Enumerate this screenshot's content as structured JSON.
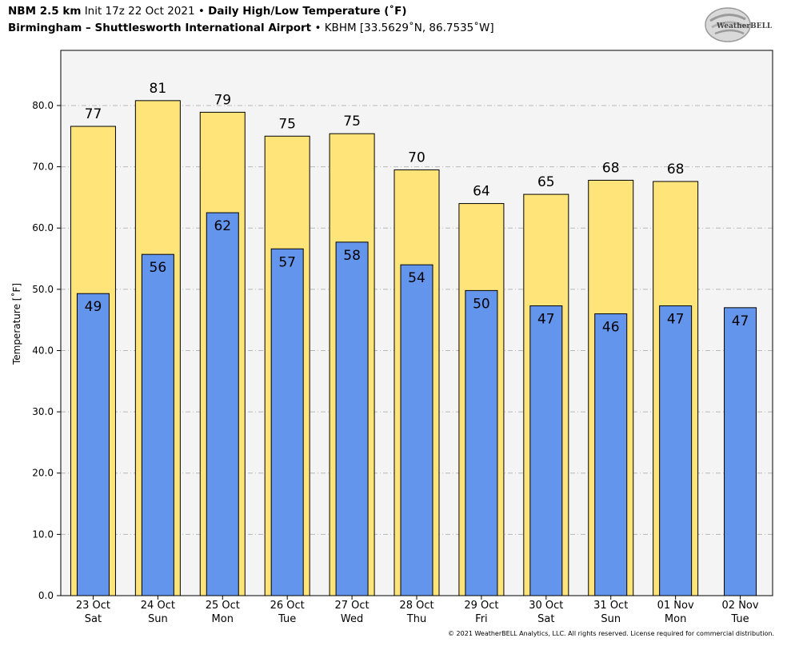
{
  "header": {
    "model": "NBM 2.5 km",
    "init": "Init 17z 22 Oct 2021",
    "sep": "•",
    "product": "Daily High/Low Temperature (˚F)",
    "location": "Birmingham – Shuttlesworth International Airport",
    "station": "KBHM [33.5629˚N, 86.7535˚W]"
  },
  "logo": {
    "brand": "WeatherBELL",
    "icon": "weatherbell-logo"
  },
  "copyright": "© 2021 WeatherBELL Analytics, LLC. All rights reserved. License required for commercial distribution.",
  "colors": {
    "high": "#FFE47A",
    "low": "#6495ED",
    "plot_bg": "#F4F4F4"
  },
  "chart_data": {
    "type": "bar",
    "ylabel": "Temperature [˚F]",
    "ylim": [
      0,
      89
    ],
    "yticks": [
      "0.0",
      "10.0",
      "20.0",
      "30.0",
      "40.0",
      "50.0",
      "60.0",
      "70.0",
      "80.0"
    ],
    "grid": true,
    "categories": [
      [
        "23 Oct",
        "Sat"
      ],
      [
        "24 Oct",
        "Sun"
      ],
      [
        "25 Oct",
        "Mon"
      ],
      [
        "26 Oct",
        "Tue"
      ],
      [
        "27 Oct",
        "Wed"
      ],
      [
        "28 Oct",
        "Thu"
      ],
      [
        "29 Oct",
        "Fri"
      ],
      [
        "30 Oct",
        "Sat"
      ],
      [
        "31 Oct",
        "Sun"
      ],
      [
        "01 Nov",
        "Mon"
      ],
      [
        "02 Nov",
        "Tue"
      ]
    ],
    "series": [
      {
        "values": [
          76.6,
          80.8,
          78.9,
          75.0,
          75.4,
          69.5,
          64.0,
          65.5,
          67.8,
          67.6,
          null
        ],
        "labels": [
          "77",
          "81",
          "79",
          "75",
          "75",
          "70",
          "64",
          "65",
          "68",
          "68",
          ""
        ]
      },
      {
        "values": [
          49.3,
          55.7,
          62.5,
          56.6,
          57.7,
          54.0,
          49.8,
          47.3,
          46.0,
          47.3,
          47.0
        ],
        "labels": [
          "49",
          "56",
          "62",
          "57",
          "58",
          "54",
          "50",
          "47",
          "46",
          "47",
          "47"
        ]
      }
    ]
  }
}
